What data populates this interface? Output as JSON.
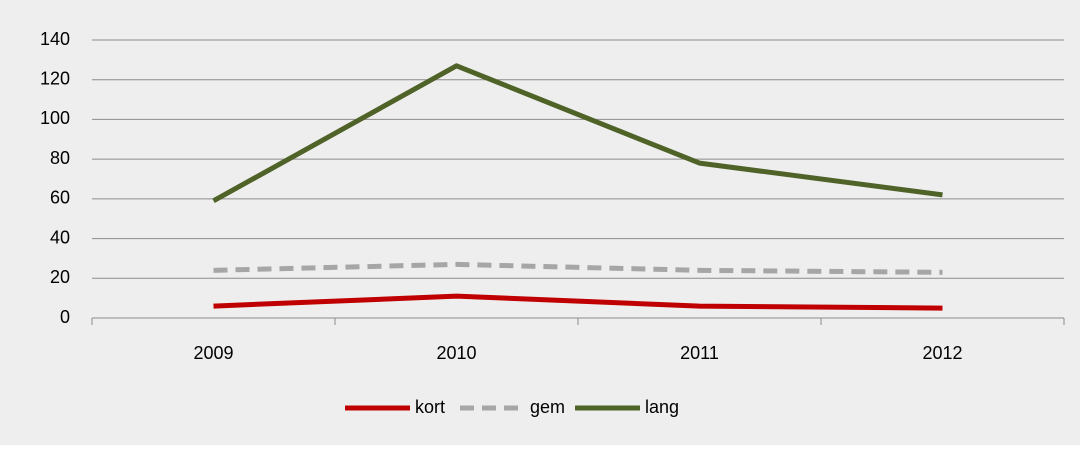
{
  "chart_data": {
    "type": "line",
    "categories": [
      "2009",
      "2010",
      "2011",
      "2012"
    ],
    "series": [
      {
        "name": "kort",
        "color": "#c00000",
        "values": [
          6,
          11,
          6,
          5
        ]
      },
      {
        "name": "gem",
        "color": "#a6a6a6",
        "dashed": true,
        "values": [
          24,
          27,
          24,
          23
        ]
      },
      {
        "name": "lang",
        "color": "#4f6228",
        "values": [
          59,
          127,
          78,
          62
        ]
      }
    ],
    "ylim": [
      0,
      140
    ],
    "yticks": [
      0,
      20,
      40,
      60,
      80,
      100,
      120,
      140
    ],
    "grid": true,
    "legend": "bottom"
  }
}
